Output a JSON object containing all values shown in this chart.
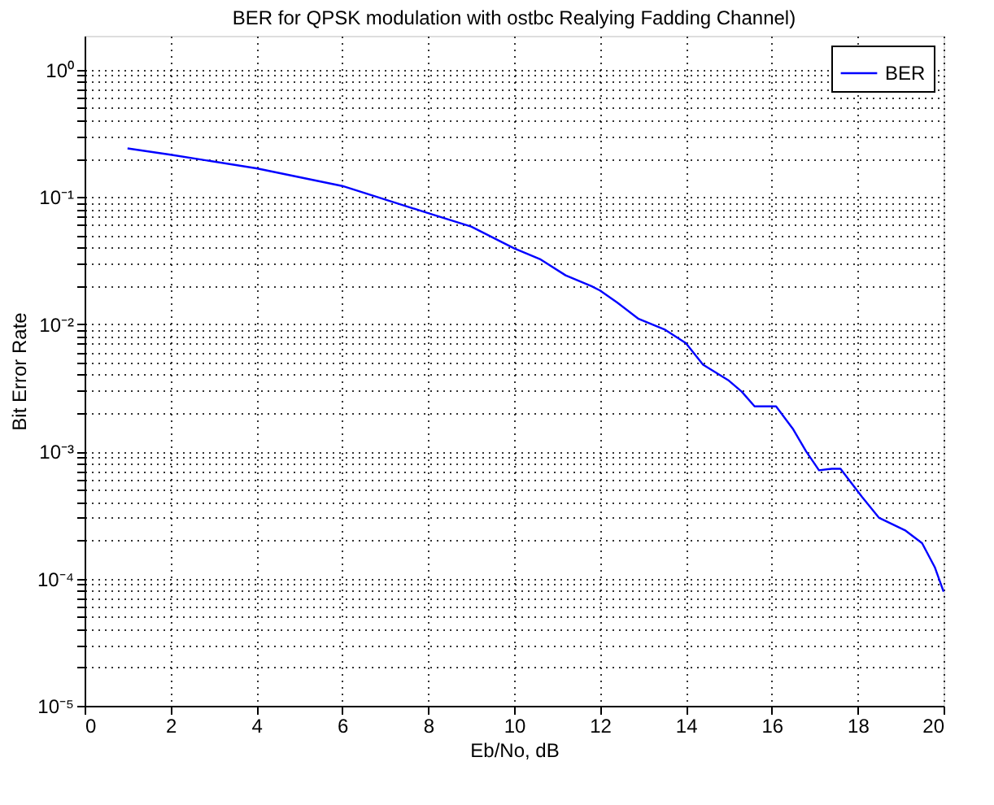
{
  "chart_data": {
    "type": "line",
    "title": "BER for QPSK modulation with ostbc Realying Fadding Channel)",
    "xlabel": "Eb/No, dB",
    "ylabel": "Bit Error Rate",
    "series": [
      {
        "name": "BER",
        "color": "#0000ff",
        "x": [
          1,
          2,
          4,
          6,
          8,
          9,
          10,
          10.6,
          11.2,
          11.8,
          12,
          12.4,
          12.9,
          13.5,
          14,
          14.4,
          15,
          15.3,
          15.6,
          16.1,
          16.5,
          16.8,
          17.1,
          17.4,
          17.6,
          18.1,
          18.5,
          19.1,
          19.5,
          19.8,
          20
        ],
        "values": [
          0.241,
          0.215,
          0.168,
          0.122,
          0.0746,
          0.0585,
          0.0395,
          0.0325,
          0.0242,
          0.0199,
          0.0184,
          0.0148,
          0.011,
          0.0091,
          0.0071,
          0.0048,
          0.0036,
          0.00295,
          0.00226,
          0.00226,
          0.00149,
          0.001,
          0.00071,
          0.00073,
          0.00073,
          0.00044,
          0.0003,
          0.00024,
          0.00019,
          0.000122,
          7.9e-05
        ]
      }
    ],
    "log": "y",
    "xlim": [
      0,
      20
    ],
    "xticks": [
      0,
      2,
      4,
      6,
      8,
      10,
      12,
      14,
      16,
      18,
      20
    ],
    "ylim": [
      1e-05,
      1.85
    ],
    "yticks": [
      {
        "value": 1e-05,
        "label": "10⁻⁵"
      },
      {
        "value": 2e-05,
        "label": null
      },
      {
        "value": 3e-05,
        "label": null
      },
      {
        "value": 4e-05,
        "label": null
      },
      {
        "value": 5e-05,
        "label": null
      },
      {
        "value": 6e-05,
        "label": null
      },
      {
        "value": 7e-05,
        "label": null
      },
      {
        "value": 8e-05,
        "label": null
      },
      {
        "value": 9e-05,
        "label": null
      },
      {
        "value": 0.0001,
        "label": "10⁻⁴"
      },
      {
        "value": 0.0002,
        "label": null
      },
      {
        "value": 0.0003,
        "label": null
      },
      {
        "value": 0.0004,
        "label": null
      },
      {
        "value": 0.0005,
        "label": null
      },
      {
        "value": 0.0006,
        "label": null
      },
      {
        "value": 0.0007,
        "label": null
      },
      {
        "value": 0.0008,
        "label": null
      },
      {
        "value": 0.0009,
        "label": null
      },
      {
        "value": 0.001,
        "label": "10⁻³"
      },
      {
        "value": 0.002,
        "label": null
      },
      {
        "value": 0.003,
        "label": null
      },
      {
        "value": 0.004,
        "label": null
      },
      {
        "value": 0.005,
        "label": null
      },
      {
        "value": 0.006,
        "label": null
      },
      {
        "value": 0.007,
        "label": null
      },
      {
        "value": 0.008,
        "label": null
      },
      {
        "value": 0.009,
        "label": null
      },
      {
        "value": 0.01,
        "label": "10⁻²"
      },
      {
        "value": 0.02,
        "label": null
      },
      {
        "value": 0.03,
        "label": null
      },
      {
        "value": 0.04,
        "label": null
      },
      {
        "value": 0.05,
        "label": null
      },
      {
        "value": 0.06,
        "label": null
      },
      {
        "value": 0.07,
        "label": null
      },
      {
        "value": 0.08,
        "label": null
      },
      {
        "value": 0.09,
        "label": null
      },
      {
        "value": 0.1,
        "label": "10⁻¹"
      },
      {
        "value": 0.2,
        "label": null
      },
      {
        "value": 0.3,
        "label": null
      },
      {
        "value": 0.4,
        "label": null
      },
      {
        "value": 0.5,
        "label": null
      },
      {
        "value": 0.6,
        "label": null
      },
      {
        "value": 0.7,
        "label": null
      },
      {
        "value": 0.8,
        "label": null
      },
      {
        "value": 0.9,
        "label": null
      },
      {
        "value": 1,
        "label": "10⁰"
      }
    ],
    "grid": true,
    "legend": "top right",
    "line_style": "solid",
    "marker": "none"
  }
}
